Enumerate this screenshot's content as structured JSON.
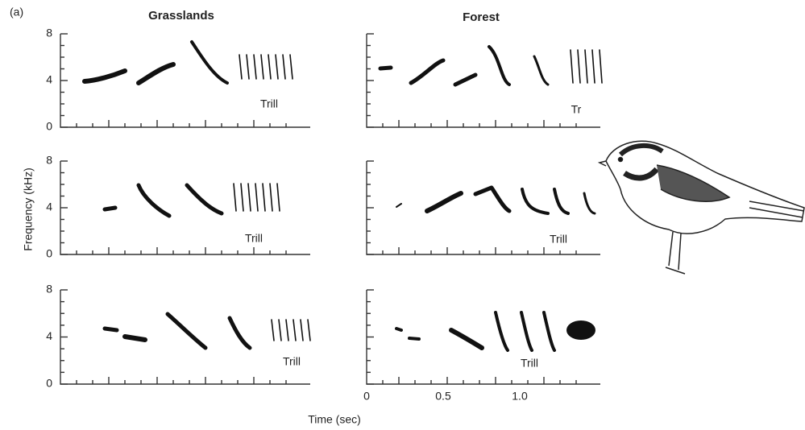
{
  "label": "(a)",
  "columns": [
    "Grasslands",
    "Forest"
  ],
  "y_axis": {
    "label": "Frequency (kHz)",
    "ticks": [
      "0",
      "4",
      "8"
    ]
  },
  "x_axis": {
    "label": "Time (sec)",
    "ticks": [
      "0",
      "0.5",
      "1.0"
    ]
  },
  "panels": [
    {
      "annotation": "Trill"
    },
    {
      "annotation": "Tr"
    },
    {
      "annotation": "Trill"
    },
    {
      "annotation": "Trill"
    },
    {
      "annotation": "Trill"
    },
    {
      "annotation": "Trill"
    }
  ]
}
